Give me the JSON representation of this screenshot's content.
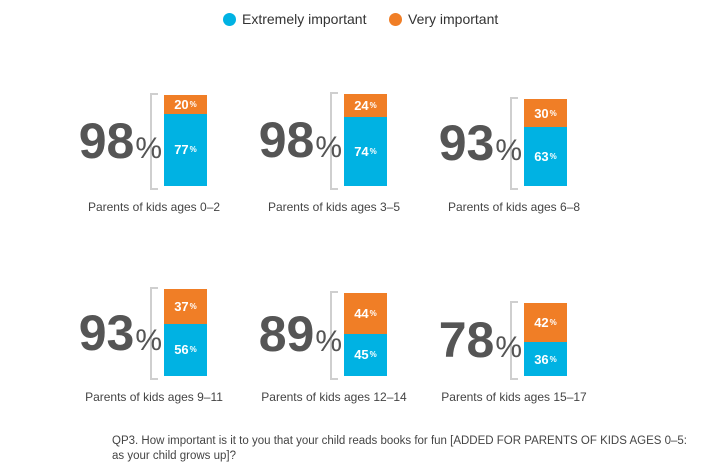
{
  "legend": {
    "extremely": "Extremely important",
    "very": "Very important"
  },
  "colors": {
    "extremely": "#00b2e3",
    "very": "#f07e26"
  },
  "question": "QP3. How important is it to you that your child reads books for fun [ADDED FOR PARENTS OF KIDS AGES 0–5: as your child grows up]?",
  "chart_data": {
    "type": "bar",
    "stacked": true,
    "categories": [
      "Parents of kids ages 0–2",
      "Parents of kids ages 3–5",
      "Parents of kids ages 6–8",
      "Parents of kids ages 9–11",
      "Parents of kids ages 12–14",
      "Parents of kids ages 15–17"
    ],
    "totals": [
      98,
      98,
      93,
      93,
      89,
      78
    ],
    "series": [
      {
        "name": "Extremely important",
        "values": [
          77,
          74,
          63,
          56,
          45,
          36
        ]
      },
      {
        "name": "Very important",
        "values": [
          20,
          24,
          30,
          37,
          44,
          42
        ]
      }
    ],
    "unit": "%",
    "legend_position": "top-center",
    "ylim": [
      0,
      100
    ]
  }
}
